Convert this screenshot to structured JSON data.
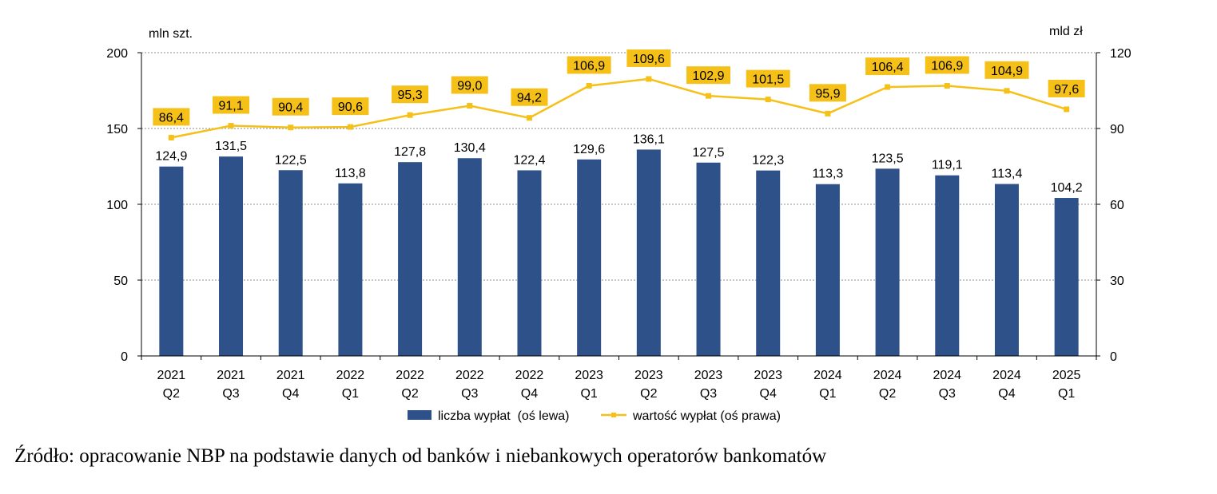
{
  "chart_data": {
    "type": "bar+line",
    "categories": [
      [
        "2021",
        "Q2"
      ],
      [
        "2021",
        "Q3"
      ],
      [
        "2021",
        "Q4"
      ],
      [
        "2022",
        "Q1"
      ],
      [
        "2022",
        "Q2"
      ],
      [
        "2022",
        "Q3"
      ],
      [
        "2022",
        "Q4"
      ],
      [
        "2023",
        "Q1"
      ],
      [
        "2023",
        "Q2"
      ],
      [
        "2023",
        "Q3"
      ],
      [
        "2023",
        "Q4"
      ],
      [
        "2024",
        "Q1"
      ],
      [
        "2024",
        "Q2"
      ],
      [
        "2024",
        "Q3"
      ],
      [
        "2024",
        "Q4"
      ],
      [
        "2025",
        "Q1"
      ]
    ],
    "series": [
      {
        "name": "liczba wypłat  (oś lewa)",
        "type": "bar",
        "axis": "left",
        "color": "#2f5189",
        "values": [
          124.9,
          131.5,
          122.5,
          113.8,
          127.8,
          130.4,
          122.4,
          129.6,
          136.1,
          127.5,
          122.3,
          113.3,
          123.5,
          119.1,
          113.4,
          104.2
        ],
        "labels": [
          "124,9",
          "131,5",
          "122,5",
          "113,8",
          "127,8",
          "130,4",
          "122,4",
          "129,6",
          "136,1",
          "127,5",
          "122,3",
          "113,3",
          "123,5",
          "119,1",
          "113,4",
          "104,2"
        ]
      },
      {
        "name": "wartość wypłat (oś prawa)",
        "type": "line",
        "axis": "right",
        "color": "#f5c018",
        "values": [
          86.4,
          91.1,
          90.4,
          90.6,
          95.3,
          99.0,
          94.2,
          106.9,
          109.6,
          102.9,
          101.5,
          95.9,
          106.4,
          106.9,
          104.9,
          97.6
        ],
        "labels": [
          "86,4",
          "91,1",
          "90,4",
          "90,6",
          "95,3",
          "99,0",
          "94,2",
          "106,9",
          "109,6",
          "102,9",
          "101,5",
          "95,9",
          "106,4",
          "106,9",
          "104,9",
          "97,6"
        ]
      }
    ],
    "y_left": {
      "unit_label": "mln szt.",
      "range": [
        0,
        200
      ],
      "ticks": [
        "0",
        "50",
        "100",
        "150",
        "200"
      ]
    },
    "y_right": {
      "unit_label": "mld zł",
      "range": [
        0,
        120
      ],
      "ticks": [
        "0",
        "30",
        "60",
        "90",
        "120"
      ]
    },
    "grid": "horizontal dotted",
    "legend_position": "bottom"
  },
  "source_note": "Źródło: opracowanie NBP na podstawie danych od banków i niebankowych operatorów bankomatów"
}
